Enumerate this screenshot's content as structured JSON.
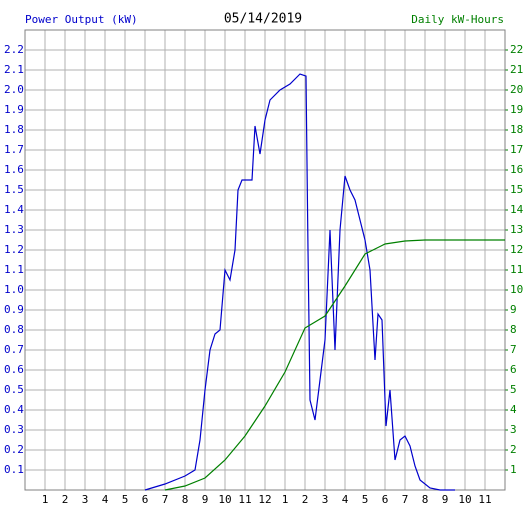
{
  "chart_data": {
    "type": "line",
    "title": "05/14/2019",
    "xlim": [
      0,
      24
    ],
    "xticks": [
      1,
      2,
      3,
      4,
      5,
      6,
      7,
      8,
      9,
      10,
      11,
      12,
      {
        "value": 13,
        "label": "1"
      },
      {
        "value": 14,
        "label": "2"
      },
      {
        "value": 15,
        "label": "3"
      },
      {
        "value": 16,
        "label": "4"
      },
      {
        "value": 17,
        "label": "5"
      },
      {
        "value": 18,
        "label": "6"
      },
      {
        "value": 19,
        "label": "7"
      },
      {
        "value": 20,
        "label": "8"
      },
      {
        "value": 21,
        "label": "9"
      },
      {
        "value": 22,
        "label": "10"
      },
      {
        "value": 23,
        "label": "11"
      }
    ],
    "ylim": [
      0,
      2.3
    ],
    "yticks": [
      0.1,
      0.2,
      0.3,
      0.4,
      0.5,
      0.6,
      0.7,
      0.8,
      0.9,
      {
        "value": 1,
        "label": "1.0"
      },
      1.1,
      1.2,
      1.3,
      1.4,
      1.5,
      1.6,
      1.7,
      1.8,
      1.9,
      {
        "value": 2,
        "label": "2.0"
      },
      2.1,
      2.2
    ],
    "y2lim": [
      0,
      23
    ],
    "y2ticks": [
      1,
      2,
      3,
      4,
      5,
      6,
      7,
      8,
      9,
      10,
      11,
      12,
      13,
      14,
      15,
      16,
      17,
      18,
      19,
      20,
      21,
      22
    ],
    "grid": true,
    "series": [
      {
        "name": "Power Output (kW)",
        "color": "#0000cc",
        "x": [
          6,
          7,
          8,
          8.5,
          8.75,
          9,
          9.25,
          9.5,
          9.75,
          10,
          10.25,
          10.5,
          10.65,
          10.85,
          11.35,
          11.5,
          11.75,
          12,
          12.25,
          12.75,
          13.25,
          13.75,
          14.05,
          14.15,
          14.25,
          14.5,
          14.75,
          15,
          15.25,
          15.5,
          15.75,
          16,
          16.25,
          16.5,
          16.75,
          17,
          17.25,
          17.5,
          17.65,
          17.85,
          18.05,
          18.25,
          18.5,
          18.75,
          19,
          19.25,
          19.5,
          19.75,
          20.25,
          20.75,
          21.5
        ],
        "values": [
          0,
          0.03,
          0.07,
          0.1,
          0.25,
          0.5,
          0.7,
          0.78,
          0.8,
          1.1,
          1.05,
          1.2,
          1.5,
          1.55,
          1.55,
          1.82,
          1.68,
          1.85,
          1.95,
          2.0,
          2.03,
          2.08,
          2.07,
          1.2,
          0.45,
          0.35,
          0.55,
          0.75,
          1.3,
          0.7,
          1.3,
          1.57,
          1.5,
          1.45,
          1.35,
          1.25,
          1.1,
          0.65,
          0.88,
          0.85,
          0.32,
          0.5,
          0.15,
          0.25,
          0.27,
          0.22,
          0.12,
          0.05,
          0.01,
          0,
          0
        ]
      },
      {
        "name": "Daily kW-Hours",
        "color": "#008000",
        "axis": "y2",
        "x": [
          7,
          8,
          9,
          10,
          11,
          12,
          13,
          14,
          15,
          16,
          17,
          18,
          19,
          20,
          24
        ],
        "values": [
          0,
          0.2,
          0.6,
          1.5,
          2.7,
          4.2,
          5.9,
          8.1,
          8.7,
          10.2,
          11.8,
          12.3,
          12.45,
          12.5,
          12.5
        ]
      }
    ]
  }
}
